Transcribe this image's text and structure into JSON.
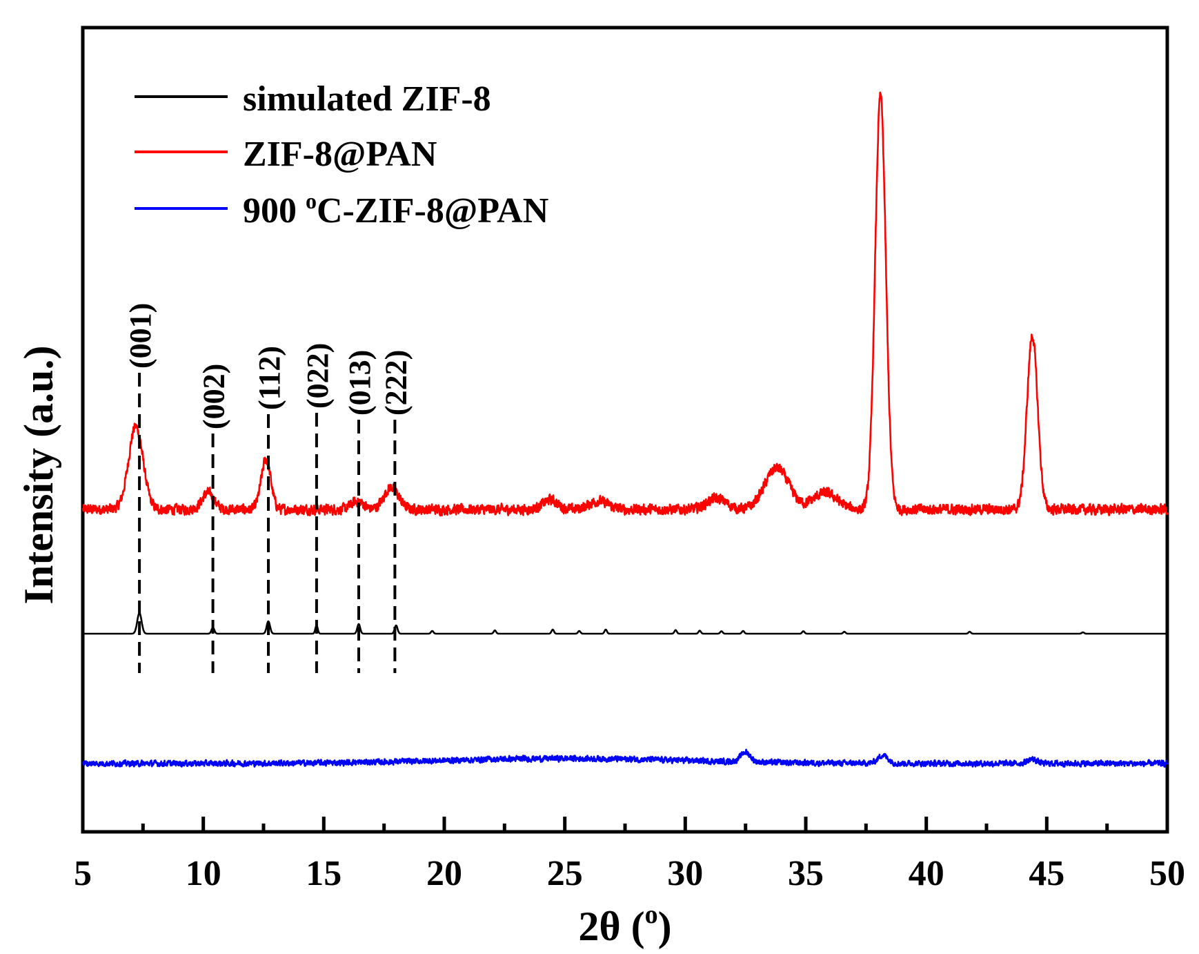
{
  "chart_data": {
    "type": "line",
    "title": "",
    "xlabel": "2θ (",
    "xlabel_sup": "o",
    "xlabel_end": ")",
    "ylabel": "Intensity (a.u.)",
    "xlim": [
      5,
      50
    ],
    "x_ticks": [
      5,
      10,
      15,
      20,
      25,
      30,
      35,
      40,
      45,
      50
    ],
    "x_tick_labels": [
      "5",
      "10",
      "15",
      "20",
      "25",
      "30",
      "35",
      "40",
      "45",
      "50"
    ],
    "y_ticks_shown": false,
    "legend_position": "top-left",
    "series": [
      {
        "name": "simulated ZIF-8",
        "color": "#000000",
        "baseline": 0.0,
        "noise": 0.0,
        "peaks": [
          {
            "x": 7.35,
            "h": 0.75,
            "w": 0.09
          },
          {
            "x": 10.4,
            "h": 0.22,
            "w": 0.06
          },
          {
            "x": 12.7,
            "h": 0.45,
            "w": 0.07
          },
          {
            "x": 14.7,
            "h": 0.3,
            "w": 0.05
          },
          {
            "x": 16.45,
            "h": 0.35,
            "w": 0.06
          },
          {
            "x": 18.0,
            "h": 0.3,
            "w": 0.06
          },
          {
            "x": 19.5,
            "h": 0.1,
            "w": 0.05
          },
          {
            "x": 22.1,
            "h": 0.12,
            "w": 0.05
          },
          {
            "x": 24.5,
            "h": 0.15,
            "w": 0.05
          },
          {
            "x": 25.6,
            "h": 0.1,
            "w": 0.05
          },
          {
            "x": 26.7,
            "h": 0.15,
            "w": 0.05
          },
          {
            "x": 29.6,
            "h": 0.13,
            "w": 0.05
          },
          {
            "x": 30.6,
            "h": 0.11,
            "w": 0.05
          },
          {
            "x": 31.5,
            "h": 0.09,
            "w": 0.05
          },
          {
            "x": 32.4,
            "h": 0.1,
            "w": 0.05
          },
          {
            "x": 34.9,
            "h": 0.09,
            "w": 0.05
          },
          {
            "x": 36.6,
            "h": 0.07,
            "w": 0.05
          },
          {
            "x": 41.8,
            "h": 0.07,
            "w": 0.05
          },
          {
            "x": 46.5,
            "h": 0.05,
            "w": 0.05
          }
        ]
      },
      {
        "name": "ZIF-8@PAN",
        "color": "#ff0000",
        "baseline": 4.5,
        "noise": 0.25,
        "peaks": [
          {
            "x": 7.2,
            "h": 3.0,
            "w": 0.3
          },
          {
            "x": 10.2,
            "h": 0.6,
            "w": 0.25
          },
          {
            "x": 12.6,
            "h": 1.8,
            "w": 0.2
          },
          {
            "x": 16.4,
            "h": 0.3,
            "w": 0.25
          },
          {
            "x": 17.8,
            "h": 0.8,
            "w": 0.3
          },
          {
            "x": 24.4,
            "h": 0.35,
            "w": 0.3
          },
          {
            "x": 26.4,
            "h": 0.3,
            "w": 0.4
          },
          {
            "x": 31.3,
            "h": 0.4,
            "w": 0.4
          },
          {
            "x": 33.8,
            "h": 1.5,
            "w": 0.5
          },
          {
            "x": 35.8,
            "h": 0.6,
            "w": 0.5
          },
          {
            "x": 38.1,
            "h": 15.0,
            "w": 0.22
          },
          {
            "x": 44.4,
            "h": 6.3,
            "w": 0.22
          }
        ]
      },
      {
        "name": "900 °C-ZIF-8@PAN",
        "color": "#0000ff",
        "baseline": -4.7,
        "noise": 0.14,
        "peaks": [
          {
            "x": 25.0,
            "h": 0.18,
            "w": 5.0
          },
          {
            "x": 32.5,
            "h": 0.35,
            "w": 0.2
          },
          {
            "x": 38.2,
            "h": 0.3,
            "w": 0.2
          },
          {
            "x": 44.4,
            "h": 0.15,
            "w": 0.2
          }
        ]
      }
    ],
    "legend": [
      {
        "label": "simulated ZIF-8",
        "color": "#000000"
      },
      {
        "label": "ZIF-8@PAN",
        "color": "#ff0000"
      },
      {
        "label_pre": "900 ",
        "label_sup": "o",
        "label_post": "C-ZIF-8@PAN",
        "color": "#0000ff"
      }
    ],
    "annotations": [
      {
        "label": "(001)",
        "x": 7.35
      },
      {
        "label": "(002)",
        "x": 10.4
      },
      {
        "label": "(112)",
        "x": 12.7
      },
      {
        "label": "(022)",
        "x": 14.7
      },
      {
        "label": "(013)",
        "x": 16.45
      },
      {
        "label": "(222)",
        "x": 17.95
      }
    ]
  }
}
